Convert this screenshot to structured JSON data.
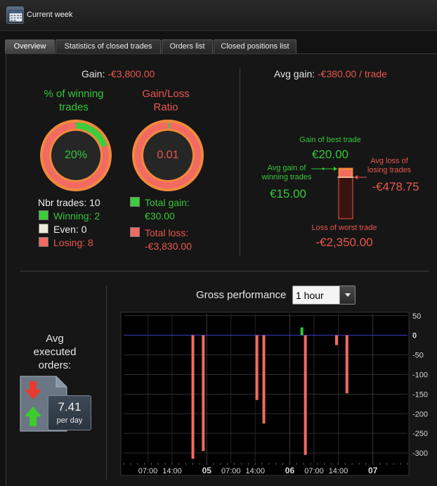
{
  "window": {
    "title": "Current week",
    "icon": "calendar-icon"
  },
  "tabs": [
    {
      "label": "Overview",
      "active": true
    },
    {
      "label": "Statistics of closed trades",
      "active": false
    },
    {
      "label": "Orders list",
      "active": false
    },
    {
      "label": "Closed positions list",
      "active": false
    }
  ],
  "summary": {
    "gain_label": "Gain: ",
    "gain_value": "-€3,800.00",
    "avg_gain_label": "Avg gain: ",
    "avg_gain_value": "-€380.00 / trade"
  },
  "winning": {
    "title_line1": "% of winning",
    "title_line2": "trades",
    "value_text": "20%",
    "fraction": 0.2
  },
  "ratio": {
    "title_line1": "Gain/Loss",
    "title_line2": "Ratio",
    "value_text": "0.01",
    "fraction": 0.0078
  },
  "counts": {
    "nbr_trades": "Nbr trades: 10",
    "winning": "Winning: 2",
    "even": "Even: 0",
    "losing": "Losing: 8"
  },
  "totals": {
    "total_gain_label": "Total gain:",
    "total_gain_value": "€30.00",
    "total_loss_label": "Total loss:",
    "total_loss_value": "-€3,830.00"
  },
  "trade_range": {
    "best_label": "Gain of best trade",
    "best_value": "€20.00",
    "avg_win_label_1": "Avg gain of",
    "avg_win_label_2": "winning trades",
    "avg_win_value": "€15.00",
    "avg_loss_label_1": "Avg loss of",
    "avg_loss_label_2": "losing trades",
    "avg_loss_value": "-€478.75",
    "worst_label": "Loss of worst trade",
    "worst_value": "-€2,350.00"
  },
  "gross_performance": {
    "title": "Gross performance",
    "interval": "1 hour"
  },
  "avg_orders": {
    "title_line1": "Avg",
    "title_line2": "executed",
    "title_line3": "orders:",
    "value": "7.41",
    "unit": "per day"
  },
  "colors": {
    "green": "#36c63a",
    "red": "#e8574e",
    "bar_red": "#f26a62",
    "zero_line": "#3a3ad0"
  },
  "chart_data": {
    "type": "bar",
    "title": "Gross performance",
    "ylim": [
      -325,
      55
    ],
    "yticks": [
      50,
      0,
      -50,
      -100,
      -150,
      -200,
      -250,
      -300
    ],
    "x_tick_labels": [
      "07:00",
      "14:00",
      "05",
      "07:00",
      "14:00",
      "06",
      "07:00",
      "14:00",
      "07"
    ],
    "x_tick_hours": [
      7,
      14,
      24,
      31,
      38,
      48,
      55,
      62,
      72
    ],
    "x_range_hours": [
      0,
      82
    ],
    "grid": true,
    "bars": [
      {
        "hour": 20.0,
        "value": -315
      },
      {
        "hour": 23.0,
        "value": -295
      },
      {
        "hour": 38.5,
        "value": -165
      },
      {
        "hour": 40.5,
        "value": -225
      },
      {
        "hour": 51.5,
        "value": 20
      },
      {
        "hour": 52.5,
        "value": -305
      },
      {
        "hour": 61.5,
        "value": -25
      },
      {
        "hour": 64.5,
        "value": -148
      }
    ]
  }
}
